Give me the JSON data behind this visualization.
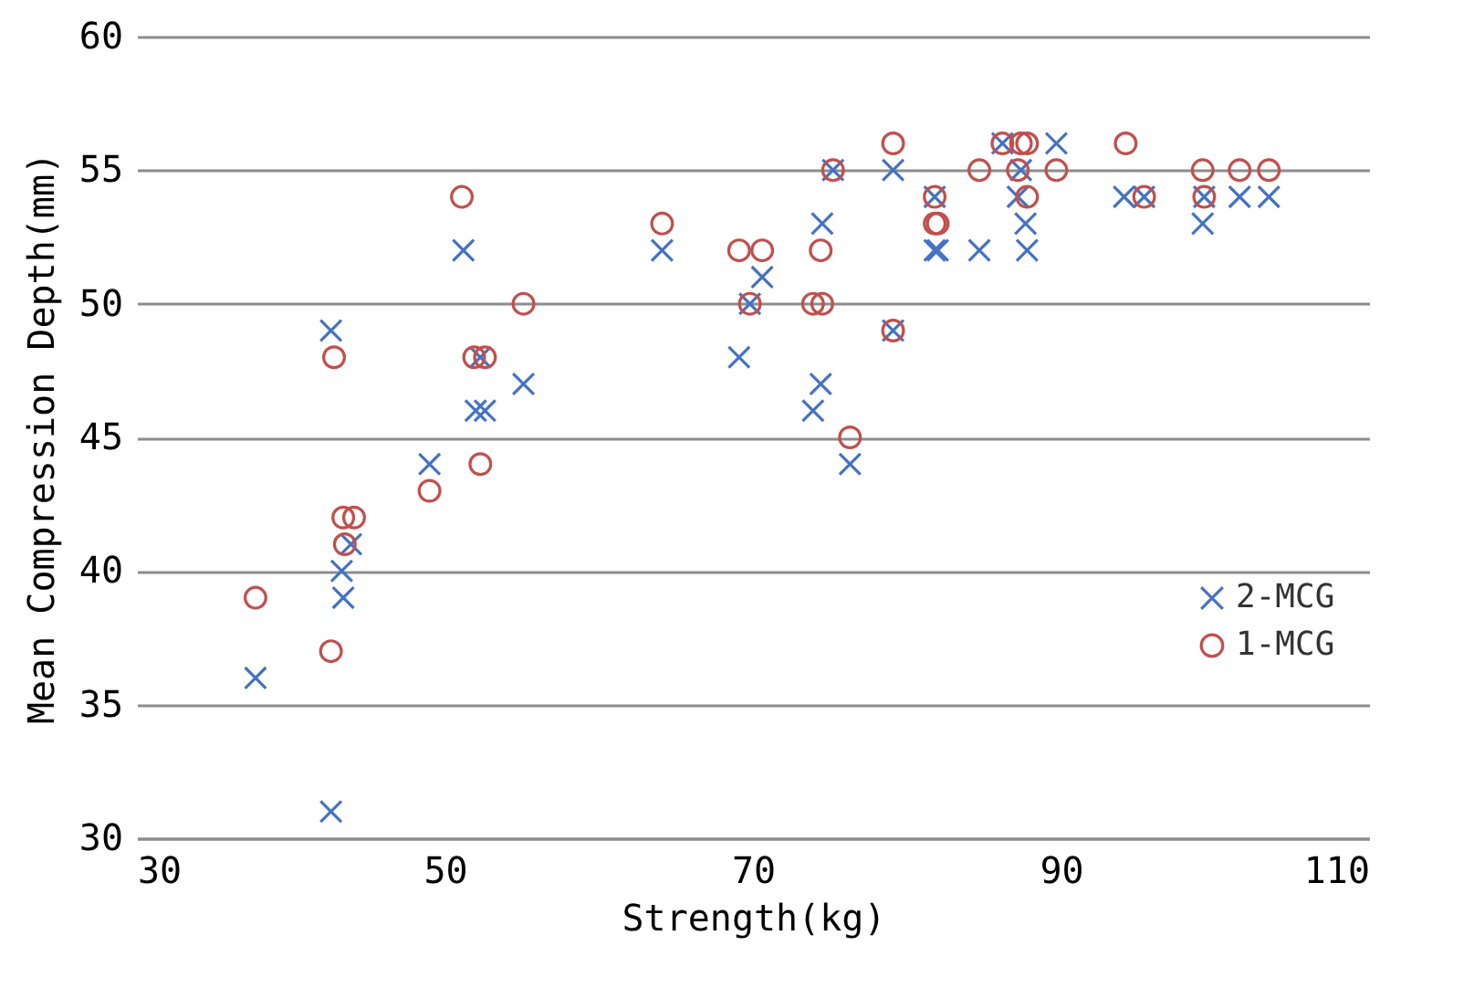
{
  "chart_data": {
    "type": "scatter",
    "xlabel": "Strength(kg)",
    "ylabel": "Mean Compression Depth(mm)",
    "xlim": [
      30,
      110
    ],
    "xticks": [
      30,
      50,
      70,
      90,
      110
    ],
    "ylim": [
      30,
      60
    ],
    "yticks": [
      30,
      35,
      40,
      45,
      50,
      55,
      60
    ],
    "grid": "y",
    "legend": "right",
    "series": [
      {
        "name": "2-MCG",
        "color": "#4472c4",
        "marker": "cross",
        "x": [
          37.7,
          42.6,
          42.6,
          43.3,
          43.4,
          43.9,
          49.0,
          51.2,
          52.0,
          52.6,
          52.3,
          55.1,
          64.1,
          69.1,
          69.8,
          70.6,
          73.9,
          74.4,
          74.5,
          75.2,
          76.3,
          79.1,
          79.1,
          81.8,
          81.8,
          82.0,
          84.7,
          86.2,
          87.2,
          87.4,
          87.7,
          87.8,
          89.7,
          94.1,
          95.4,
          99.2,
          99.3,
          101.6,
          103.5
        ],
        "values": [
          36,
          31,
          49,
          40,
          39,
          41,
          44,
          52,
          46,
          46,
          48,
          47,
          52,
          48,
          50,
          51,
          46,
          47,
          53,
          55,
          44,
          55,
          49,
          54,
          52,
          52,
          52,
          56,
          54,
          55,
          53,
          52,
          56,
          54,
          54,
          53,
          54,
          54,
          54
        ]
      },
      {
        "name": "1-MCG",
        "color": "#c0504d",
        "marker": "circle",
        "x": [
          37.7,
          42.6,
          42.8,
          43.4,
          43.5,
          44.1,
          49.0,
          51.1,
          51.9,
          52.6,
          52.3,
          55.1,
          64.1,
          69.1,
          69.8,
          70.6,
          73.9,
          74.5,
          74.4,
          75.2,
          76.3,
          79.1,
          79.1,
          81.8,
          81.8,
          82.0,
          84.7,
          86.2,
          87.2,
          87.4,
          87.8,
          87.8,
          89.7,
          94.2,
          95.4,
          99.2,
          99.3,
          101.6,
          103.5
        ],
        "values": [
          39,
          37,
          48,
          42,
          41,
          42,
          43,
          54,
          48,
          48,
          44,
          50,
          53,
          52,
          50,
          52,
          50,
          50,
          52,
          55,
          45,
          56,
          49,
          54,
          53,
          53,
          55,
          56,
          55,
          56,
          56,
          54,
          55,
          56,
          54,
          55,
          54,
          55,
          55
        ]
      }
    ]
  }
}
